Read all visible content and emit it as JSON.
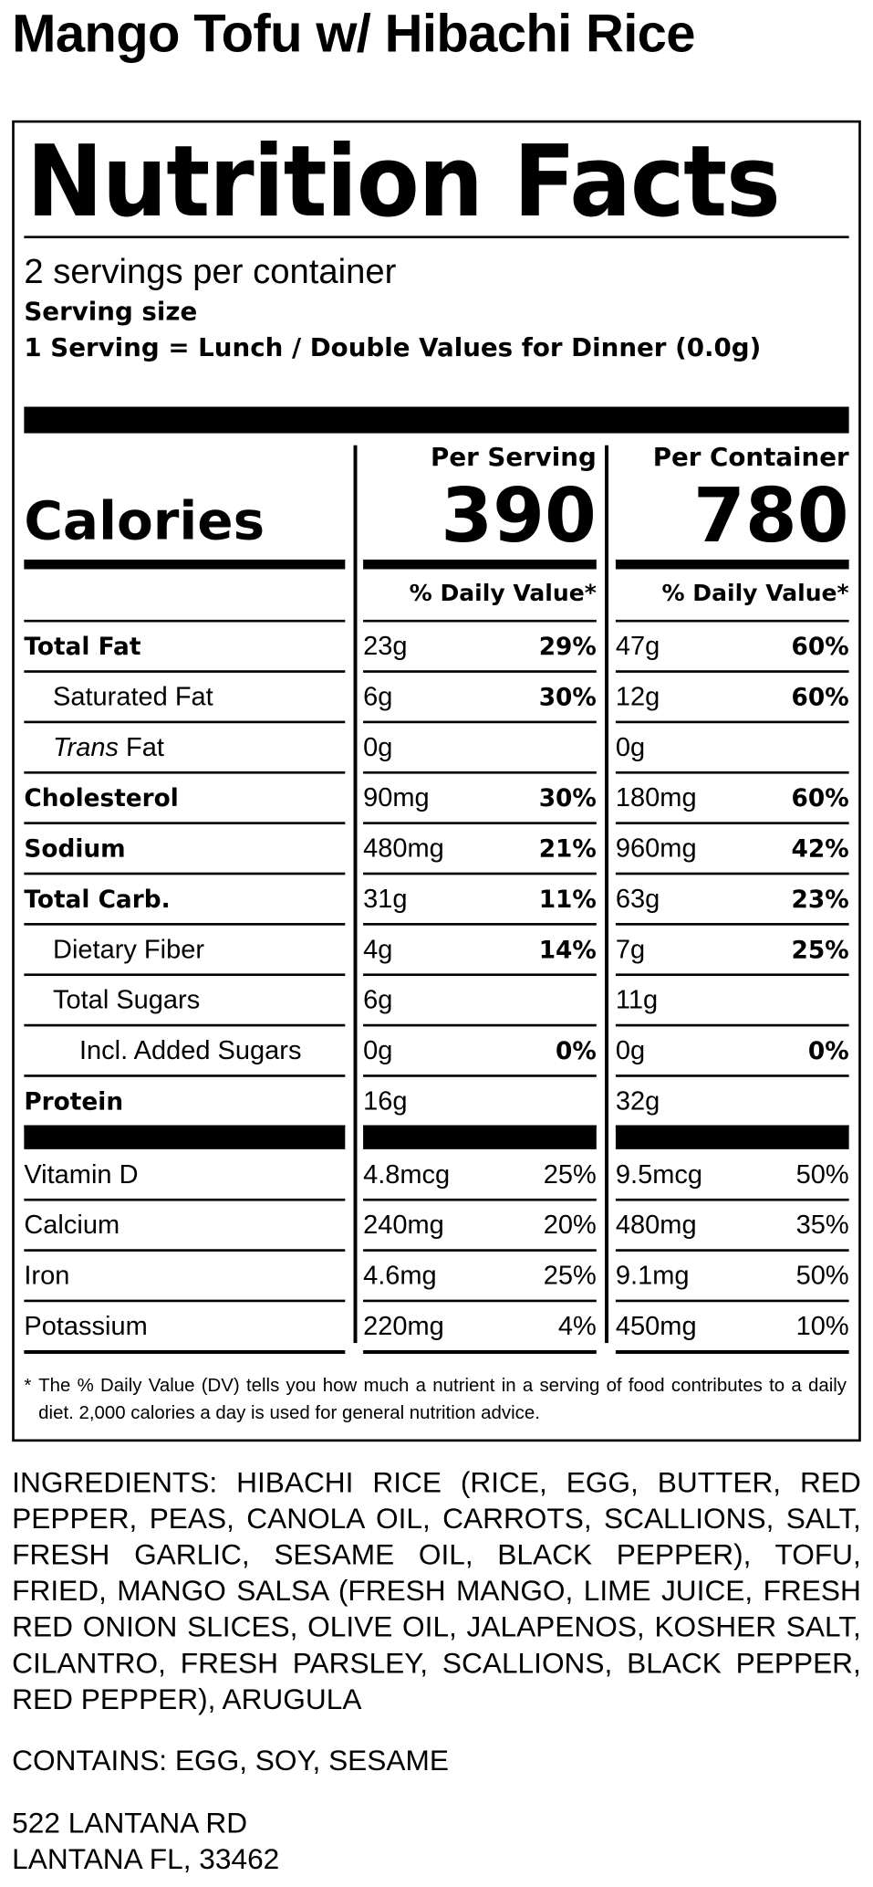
{
  "title": "Mango Tofu w/ Hibachi Rice",
  "label": {
    "heading": "Nutrition Facts",
    "servings": "2 servings per container",
    "serving_size_label": "Serving size",
    "serving_size": "1 Serving = Lunch / Double Values for Dinner (0.0g)",
    "calories_label": "Calories",
    "columns": [
      {
        "header": "Per Serving",
        "calories": "390",
        "dv_header": "% Daily Value*"
      },
      {
        "header": "Per Container",
        "calories": "780",
        "dv_header": "% Daily Value*"
      }
    ],
    "nutrients": [
      {
        "name": "Total Fat",
        "values": [
          {
            "amount": "23g",
            "dv": "29%"
          },
          {
            "amount": "47g",
            "dv": "60%"
          }
        ]
      },
      {
        "name": "Saturated Fat",
        "values": [
          {
            "amount": "6g",
            "dv": "30%"
          },
          {
            "amount": "12g",
            "dv": "60%"
          }
        ]
      },
      {
        "name_italic": "Trans",
        "name": "Fat",
        "values": [
          {
            "amount": "0g"
          },
          {
            "amount": "0g"
          }
        ]
      },
      {
        "name": "Cholesterol",
        "values": [
          {
            "amount": "90mg",
            "dv": "30%"
          },
          {
            "amount": "180mg",
            "dv": "60%"
          }
        ]
      },
      {
        "name": "Sodium",
        "values": [
          {
            "amount": "480mg",
            "dv": "21%"
          },
          {
            "amount": "960mg",
            "dv": "42%"
          }
        ]
      },
      {
        "name": "Total Carb.",
        "values": [
          {
            "amount": "31g",
            "dv": "11%"
          },
          {
            "amount": "63g",
            "dv": "23%"
          }
        ]
      },
      {
        "name": "Dietary Fiber",
        "values": [
          {
            "amount": "4g",
            "dv": "14%"
          },
          {
            "amount": "7g",
            "dv": "25%"
          }
        ]
      },
      {
        "name": "Total Sugars",
        "values": [
          {
            "amount": "6g"
          },
          {
            "amount": "11g"
          }
        ]
      },
      {
        "name": "Incl. Added Sugars",
        "values": [
          {
            "amount": "0g",
            "dv": "0%"
          },
          {
            "amount": "0g",
            "dv": "0%"
          }
        ]
      },
      {
        "name": "Protein",
        "values": [
          {
            "amount": "16g"
          },
          {
            "amount": "32g"
          }
        ]
      }
    ],
    "vitamins": [
      {
        "name": "Vitamin D",
        "values": [
          {
            "amount": "4.8mcg",
            "dv": "25%"
          },
          {
            "amount": "9.5mcg",
            "dv": "50%"
          }
        ]
      },
      {
        "name": "Calcium",
        "values": [
          {
            "amount": "240mg",
            "dv": "20%"
          },
          {
            "amount": "480mg",
            "dv": "35%"
          }
        ]
      },
      {
        "name": "Iron",
        "values": [
          {
            "amount": "4.6mg",
            "dv": "25%"
          },
          {
            "amount": "9.1mg",
            "dv": "50%"
          }
        ]
      },
      {
        "name": "Potassium",
        "values": [
          {
            "amount": "220mg",
            "dv": "4%"
          },
          {
            "amount": "450mg",
            "dv": "10%"
          }
        ]
      }
    ],
    "footnote": {
      "marker": "*",
      "text": "The % Daily Value (DV) tells you how much a nutrient in a serving of food contributes to a daily diet. 2,000 calories a day is used for general nutrition advice."
    }
  },
  "ingredients": "INGREDIENTS: HIBACHI RICE (RICE, EGG, BUTTER, RED PEPPER, PEAS, CANOLA OIL, CARROTS, SCALLIONS, SALT, FRESH GARLIC, SESAME OIL, BLACK PEPPER), TOFU, FRIED, MANGO SALSA (FRESH MANGO, LIME JUICE, FRESH RED ONION SLICES, OLIVE OIL, JALAPENOS, KOSHER SALT, CILANTRO, FRESH PARSLEY, SCALLIONS, BLACK PEPPER, RED PEPPER), ARUGULA",
  "contains": "CONTAINS: EGG, SOY, SESAME",
  "address": [
    "522 LANTANA RD",
    "LANTANA FL, 33462"
  ]
}
